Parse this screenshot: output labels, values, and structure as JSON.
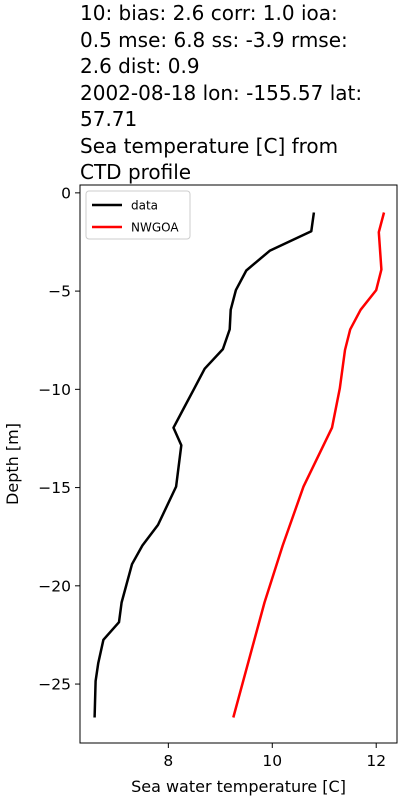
{
  "chart_data": {
    "type": "line",
    "title_lines": [
      "10: bias: 2.6  corr: 1.0  ioa:",
      "0.5  mse: 6.8  ss: -3.9  rmse:",
      "2.6  dist: 0.9",
      "2002-08-18 lon: -155.57 lat:",
      "57.71",
      "Sea temperature [C] from",
      "CTD profile"
    ],
    "xlabel": "Sea water temperature [C]",
    "ylabel": "Depth [m]",
    "xlim": [
      6.3,
      12.4
    ],
    "ylim": [
      -28.0,
      0.4
    ],
    "xticks": [
      8,
      10,
      12
    ],
    "xtick_labels": [
      "8",
      "10",
      "12"
    ],
    "yticks": [
      0,
      -5,
      -10,
      -15,
      -20,
      -25
    ],
    "ytick_labels": [
      "0",
      "−5",
      "−10",
      "−15",
      "−20",
      "−25"
    ],
    "legend_position": "upper-left",
    "series": [
      {
        "name": "data",
        "color": "#000000",
        "points": [
          [
            10.8,
            -1.0
          ],
          [
            10.75,
            -1.95
          ],
          [
            9.95,
            -2.95
          ],
          [
            9.5,
            -3.95
          ],
          [
            9.3,
            -4.95
          ],
          [
            9.2,
            -5.95
          ],
          [
            9.18,
            -6.95
          ],
          [
            9.05,
            -7.95
          ],
          [
            8.7,
            -8.95
          ],
          [
            8.5,
            -9.95
          ],
          [
            8.3,
            -10.95
          ],
          [
            8.1,
            -11.95
          ],
          [
            8.25,
            -12.85
          ],
          [
            8.15,
            -14.95
          ],
          [
            7.8,
            -16.9
          ],
          [
            7.5,
            -17.95
          ],
          [
            7.3,
            -18.9
          ],
          [
            7.1,
            -20.85
          ],
          [
            7.05,
            -21.85
          ],
          [
            6.75,
            -22.75
          ],
          [
            6.65,
            -23.95
          ],
          [
            6.6,
            -24.85
          ],
          [
            6.58,
            -26.7
          ]
        ]
      },
      {
        "name": "NWGOA",
        "color": "#ff0000",
        "points": [
          [
            12.15,
            -1.0
          ],
          [
            12.05,
            -2.0
          ],
          [
            12.1,
            -3.9
          ],
          [
            12.0,
            -4.95
          ],
          [
            11.7,
            -5.95
          ],
          [
            11.5,
            -6.95
          ],
          [
            11.4,
            -8.0
          ],
          [
            11.3,
            -9.95
          ],
          [
            11.15,
            -11.95
          ],
          [
            10.6,
            -14.95
          ],
          [
            10.2,
            -17.95
          ],
          [
            9.85,
            -20.85
          ],
          [
            9.25,
            -26.7
          ]
        ]
      }
    ]
  }
}
